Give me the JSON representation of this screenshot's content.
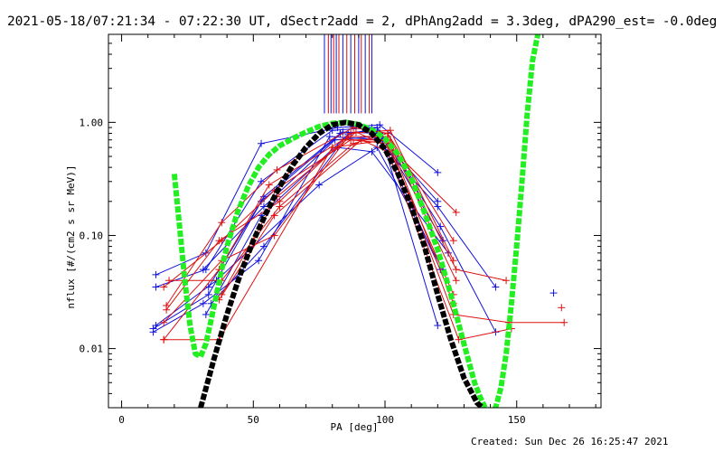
{
  "title": "2021-05-18/07:21:34 - 07:22:30 UT, dSectr2add = 2, dPhAng2add = 3.3deg, dPA290_est= -0.0deg",
  "footer": "Created: Sun Dec 26 16:25:47 2021",
  "colors": {
    "red": "#dd1111",
    "blue": "#1111dd",
    "green": "#22ee22",
    "black": "#000000",
    "axis": "#000000"
  },
  "chart_data": {
    "type": "line",
    "xlabel": "PA [deg]",
    "ylabel": "nflux [#/(cm2 s sr MeV)]",
    "xlim": [
      -5,
      182
    ],
    "ylim": [
      0.003,
      6.0
    ],
    "yscale": "log",
    "xticks": [
      0,
      50,
      100,
      150
    ],
    "xtick_labels": [
      "0",
      "50",
      "100",
      "150"
    ],
    "yticks": [
      0.01,
      0.1,
      1.0
    ],
    "ytick_labels": [
      "0.01",
      "0.10",
      "1.00"
    ],
    "vertical_markers": [
      {
        "color": "blue",
        "x": 77
      },
      {
        "color": "red",
        "x": 78.5
      },
      {
        "color": "blue",
        "x": 79.5
      },
      {
        "color": "red",
        "x": 80.5
      },
      {
        "color": "blue",
        "x": 81.5
      },
      {
        "color": "red",
        "x": 82.5
      },
      {
        "color": "blue",
        "x": 84
      },
      {
        "color": "red",
        "x": 85.5
      },
      {
        "color": "blue",
        "x": 87
      },
      {
        "color": "red",
        "x": 88.5
      },
      {
        "color": "blue",
        "x": 90
      },
      {
        "color": "red",
        "x": 91
      },
      {
        "color": "blue",
        "x": 92.5
      },
      {
        "color": "red",
        "x": 94
      },
      {
        "color": "blue",
        "x": 95
      }
    ],
    "series": [
      {
        "name": "blue-1",
        "color": "blue",
        "x": [
          13,
          32,
          53,
          82,
          98,
          120
        ],
        "y": [
          0.045,
          0.07,
          0.65,
          0.9,
          0.95,
          0.36
        ]
      },
      {
        "name": "blue-2",
        "color": "blue",
        "x": [
          13,
          32,
          53,
          80,
          95,
          120
        ],
        "y": [
          0.035,
          0.05,
          0.3,
          0.85,
          0.9,
          0.2
        ]
      },
      {
        "name": "blue-3",
        "color": "blue",
        "x": [
          12,
          33,
          54,
          83,
          97,
          121
        ],
        "y": [
          0.015,
          0.03,
          0.22,
          0.8,
          0.85,
          0.05
        ]
      },
      {
        "name": "blue-4",
        "color": "blue",
        "x": [
          12,
          31,
          52,
          79,
          99,
          120
        ],
        "y": [
          0.014,
          0.025,
          0.06,
          0.75,
          0.7,
          0.016
        ]
      },
      {
        "name": "blue-5",
        "color": "blue",
        "x": [
          33,
          53,
          84,
          98,
          122
        ],
        "y": [
          0.035,
          0.2,
          0.82,
          0.8,
          0.09
        ]
      },
      {
        "name": "blue-6",
        "color": "blue",
        "x": [
          31,
          54,
          81,
          96,
          120,
          142
        ],
        "y": [
          0.05,
          0.18,
          0.7,
          0.75,
          0.18,
          0.035
        ]
      },
      {
        "name": "blue-7",
        "color": "blue",
        "x": [
          32,
          53,
          86,
          97,
          121,
          142
        ],
        "y": [
          0.02,
          0.15,
          0.78,
          0.9,
          0.12,
          0.014
        ]
      },
      {
        "name": "blue-8",
        "color": "blue",
        "x": [
          34,
          54,
          82,
          95,
          124
        ],
        "y": [
          0.025,
          0.08,
          0.6,
          0.55,
          0.07
        ]
      },
      {
        "name": "blue-9",
        "color": "blue",
        "x": [
          13,
          36,
          75,
          97,
          122
        ],
        "y": [
          0.016,
          0.04,
          0.28,
          0.6,
          0.05
        ]
      },
      {
        "name": "red-1",
        "color": "red",
        "x": [
          17,
          38,
          59,
          88,
          101,
          126
        ],
        "y": [
          0.024,
          0.13,
          0.38,
          0.9,
          0.8,
          0.09
        ]
      },
      {
        "name": "red-2",
        "color": "red",
        "x": [
          17,
          37,
          60,
          87,
          102,
          126
        ],
        "y": [
          0.022,
          0.09,
          0.2,
          0.8,
          0.85,
          0.06
        ]
      },
      {
        "name": "red-3",
        "color": "red",
        "x": [
          16,
          38,
          58,
          86,
          101,
          127
        ],
        "y": [
          0.017,
          0.06,
          0.1,
          0.75,
          0.75,
          0.04
        ]
      },
      {
        "name": "red-4",
        "color": "red",
        "x": [
          16,
          37,
          56,
          84,
          100,
          126
        ],
        "y": [
          0.012,
          0.05,
          0.28,
          0.7,
          0.7,
          0.03
        ]
      },
      {
        "name": "red-5",
        "color": "red",
        "x": [
          38,
          59,
          89,
          102,
          127
        ],
        "y": [
          0.03,
          0.22,
          0.82,
          0.6,
          0.16
        ]
      },
      {
        "name": "red-6",
        "color": "red",
        "x": [
          18,
          38,
          60,
          88,
          101,
          127,
          146
        ],
        "y": [
          0.04,
          0.04,
          0.18,
          0.65,
          0.8,
          0.05,
          0.04
        ]
      },
      {
        "name": "red-7",
        "color": "red",
        "x": [
          37,
          58,
          91,
          101,
          128,
          148
        ],
        "y": [
          0.027,
          0.15,
          0.7,
          0.55,
          0.012,
          0.015
        ]
      },
      {
        "name": "red-8",
        "color": "red",
        "x": [
          16,
          37,
          80,
          101,
          126,
          147,
          168
        ],
        "y": [
          0.012,
          0.012,
          0.6,
          0.7,
          0.02,
          0.017,
          0.017
        ]
      },
      {
        "name": "red-9",
        "color": "red",
        "x": [
          16,
          38,
          58,
          87,
          102,
          126
        ],
        "y": [
          0.035,
          0.09,
          0.25,
          0.7,
          0.65,
          0.025
        ]
      }
    ],
    "extra_points": [
      {
        "color": "blue",
        "x": 164,
        "y": 0.031
      },
      {
        "color": "red",
        "x": 167,
        "y": 0.023
      }
    ],
    "fits": [
      {
        "name": "green-fit",
        "color": "green",
        "style": "thick-dashed",
        "x": [
          20,
          22,
          24,
          26,
          28,
          30,
          32,
          34,
          36,
          38,
          40,
          44,
          48,
          52,
          56,
          60,
          65,
          70,
          75,
          80,
          85,
          90,
          95,
          100,
          105,
          110,
          115,
          120,
          125,
          130,
          134,
          136,
          138,
          140,
          142,
          144,
          146,
          148,
          150,
          152,
          154,
          156,
          158
        ],
        "y": [
          0.35,
          0.12,
          0.04,
          0.016,
          0.009,
          0.0085,
          0.011,
          0.018,
          0.03,
          0.05,
          0.08,
          0.16,
          0.27,
          0.4,
          0.52,
          0.62,
          0.72,
          0.82,
          0.92,
          0.98,
          1.0,
          0.96,
          0.86,
          0.72,
          0.52,
          0.32,
          0.16,
          0.075,
          0.03,
          0.011,
          0.005,
          0.0038,
          0.003,
          0.0028,
          0.003,
          0.0045,
          0.009,
          0.025,
          0.08,
          0.3,
          1.2,
          3.5,
          6.0
        ]
      },
      {
        "name": "black-fit",
        "color": "black",
        "style": "thick-dashed",
        "x": [
          30,
          35,
          40,
          45,
          50,
          55,
          60,
          65,
          70,
          75,
          80,
          85,
          90,
          95,
          100,
          105,
          110,
          115,
          120,
          125,
          130,
          135,
          137
        ],
        "y": [
          0.003,
          0.008,
          0.02,
          0.045,
          0.09,
          0.16,
          0.27,
          0.42,
          0.6,
          0.8,
          0.95,
          1.0,
          0.95,
          0.8,
          0.58,
          0.35,
          0.18,
          0.08,
          0.03,
          0.012,
          0.0055,
          0.0033,
          0.003
        ]
      }
    ]
  }
}
